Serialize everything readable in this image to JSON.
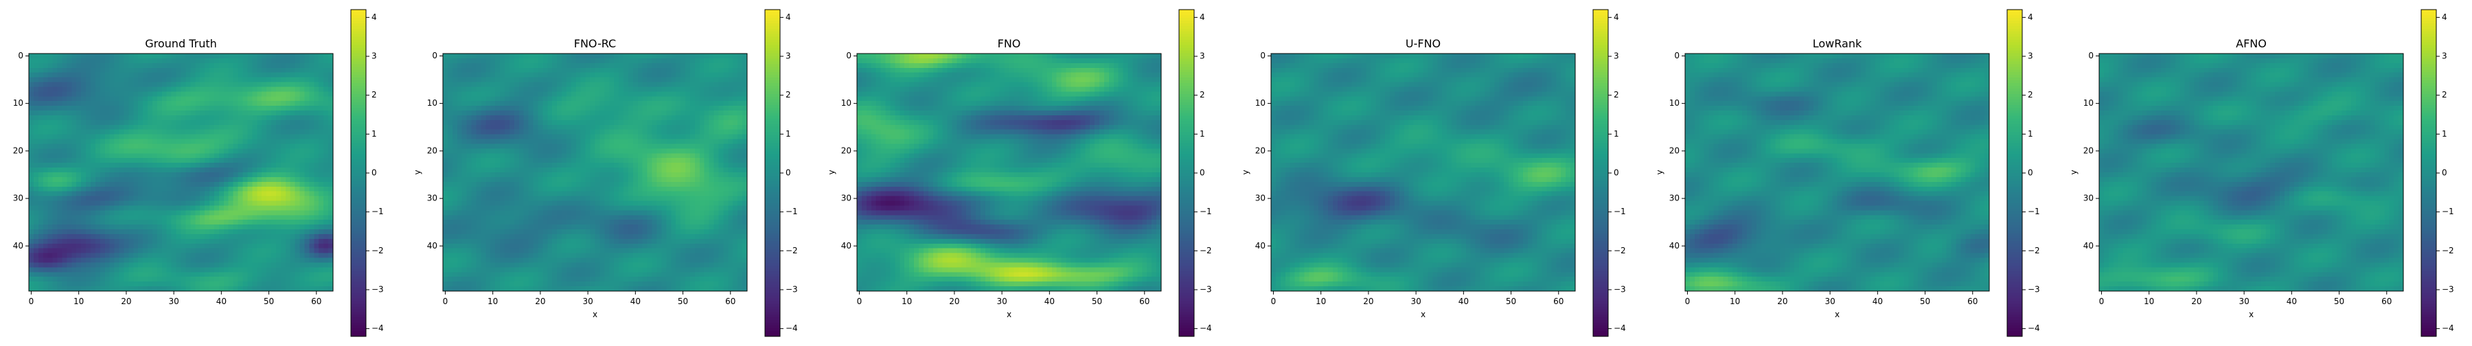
{
  "figure": {
    "colormap": "viridis",
    "colors": [
      "#440154",
      "#482878",
      "#3e4989",
      "#31688e",
      "#26828e",
      "#1f9e89",
      "#35b779",
      "#6ece58",
      "#b5de2b",
      "#fde725"
    ]
  },
  "chart_data": [
    {
      "type": "heatmap",
      "title": "Ground Truth",
      "xlabel": "",
      "ylabel": "",
      "x_ticks": [
        0,
        10,
        20,
        30,
        40,
        50,
        60
      ],
      "y_ticks": [
        0,
        10,
        20,
        30,
        40
      ],
      "grid_shape": [
        50,
        64
      ],
      "value_range": [
        -4.2,
        4.2
      ],
      "colorbar_ticks": [
        4,
        3,
        2,
        1,
        0,
        -1,
        -2,
        -3,
        -4
      ],
      "colorbar_labels": [
        "4",
        "3",
        "2",
        "1",
        "0",
        "−1",
        "−2",
        "−3",
        "−4"
      ],
      "features": [
        {
          "x": 52,
          "y": 29,
          "sx": 7,
          "sy": 3,
          "v": 3.3
        },
        {
          "x": 42,
          "y": 34,
          "sx": 9,
          "sy": 2,
          "v": 2.0
        },
        {
          "x": 10,
          "y": 40,
          "sx": 6,
          "sy": 2.5,
          "v": -3.4
        },
        {
          "x": 3,
          "y": 43,
          "sx": 4,
          "sy": 2,
          "v": -2.4
        },
        {
          "x": 62,
          "y": 40,
          "sx": 3,
          "sy": 2,
          "v": -2.6
        },
        {
          "x": 46,
          "y": 9,
          "sx": 14,
          "sy": 2.5,
          "v": 1.9
        },
        {
          "x": 30,
          "y": 19,
          "sx": 9,
          "sy": 3,
          "v": 2.0
        },
        {
          "x": 8,
          "y": 7,
          "sx": 9,
          "sy": 3,
          "v": -1.6
        },
        {
          "x": 36,
          "y": 25,
          "sx": 7,
          "sy": 2,
          "v": -1.7
        },
        {
          "x": 14,
          "y": 30,
          "sx": 9,
          "sy": 2,
          "v": -1.6
        },
        {
          "x": 5,
          "y": 26,
          "sx": 4,
          "sy": 2,
          "v": 1.3
        },
        {
          "x": 40,
          "y": 47,
          "sx": 14,
          "sy": 2,
          "v": 0.8
        }
      ]
    },
    {
      "type": "heatmap",
      "title": "FNO-RC",
      "xlabel": "x",
      "ylabel": "y",
      "x_ticks": [
        0,
        10,
        20,
        30,
        40,
        50,
        60
      ],
      "y_ticks": [
        0,
        10,
        20,
        30,
        40
      ],
      "grid_shape": [
        50,
        64
      ],
      "value_range": [
        -4.2,
        4.2
      ],
      "colorbar_ticks": [
        4,
        3,
        2,
        1,
        0,
        -1,
        -2,
        -3,
        -4
      ],
      "colorbar_labels": [
        "4",
        "3",
        "2",
        "1",
        "0",
        "−1",
        "−2",
        "−3",
        "−4"
      ],
      "features": [
        {
          "x": 13,
          "y": 14,
          "sx": 7,
          "sy": 3,
          "v": -1.9
        },
        {
          "x": 45,
          "y": 22,
          "sx": 9,
          "sy": 5,
          "v": 1.6
        },
        {
          "x": 52,
          "y": 29,
          "sx": 6,
          "sy": 4,
          "v": 1.6
        },
        {
          "x": 30,
          "y": 11,
          "sx": 10,
          "sy": 3,
          "v": 1.1
        },
        {
          "x": 38,
          "y": 35,
          "sx": 6,
          "sy": 3,
          "v": -1.2
        },
        {
          "x": 14,
          "y": 36,
          "sx": 8,
          "sy": 4,
          "v": -0.9
        },
        {
          "x": 60,
          "y": 12,
          "sx": 5,
          "sy": 4,
          "v": 1.0
        }
      ]
    },
    {
      "type": "heatmap",
      "title": "FNO",
      "xlabel": "x",
      "ylabel": "y",
      "x_ticks": [
        0,
        10,
        20,
        30,
        40,
        50,
        60
      ],
      "y_ticks": [
        0,
        10,
        20,
        30,
        40
      ],
      "grid_shape": [
        50,
        64
      ],
      "value_range": [
        -4.2,
        4.2
      ],
      "colorbar_ticks": [
        4,
        3,
        2,
        1,
        0,
        -1,
        -2,
        -3,
        -4
      ],
      "colorbar_labels": [
        "4",
        "3",
        "2",
        "1",
        "0",
        "−1",
        "−2",
        "−3",
        "−4"
      ],
      "features": [
        {
          "x": 10,
          "y": 31,
          "sx": 10,
          "sy": 3,
          "v": -3.6
        },
        {
          "x": 55,
          "y": 32,
          "sx": 8,
          "sy": 3,
          "v": -3.0
        },
        {
          "x": 40,
          "y": 14,
          "sx": 9,
          "sy": 2,
          "v": -3.0
        },
        {
          "x": 28,
          "y": 27,
          "sx": 7,
          "sy": 2,
          "v": 2.4
        },
        {
          "x": 20,
          "y": 43,
          "sx": 10,
          "sy": 3,
          "v": 2.5
        },
        {
          "x": 42,
          "y": 46,
          "sx": 12,
          "sy": 2,
          "v": 3.0
        },
        {
          "x": 14,
          "y": 0,
          "sx": 10,
          "sy": 2,
          "v": 2.8
        },
        {
          "x": 44,
          "y": 5,
          "sx": 8,
          "sy": 3,
          "v": 2.0
        },
        {
          "x": 4,
          "y": 16,
          "sx": 6,
          "sy": 4,
          "v": 1.9
        },
        {
          "x": 55,
          "y": 22,
          "sx": 6,
          "sy": 3,
          "v": 1.6
        },
        {
          "x": 26,
          "y": 37,
          "sx": 7,
          "sy": 2,
          "v": -2.4
        }
      ]
    },
    {
      "type": "heatmap",
      "title": "U-FNO",
      "xlabel": "x",
      "ylabel": "y",
      "x_ticks": [
        0,
        10,
        20,
        30,
        40,
        50,
        60
      ],
      "y_ticks": [
        0,
        10,
        20,
        30,
        40
      ],
      "grid_shape": [
        50,
        64
      ],
      "value_range": [
        -4.2,
        4.2
      ],
      "colorbar_ticks": [
        4,
        3,
        2,
        1,
        0,
        -1,
        -2,
        -3,
        -4
      ],
      "colorbar_labels": [
        "4",
        "3",
        "2",
        "1",
        "0",
        "−1",
        "−2",
        "−3",
        "−4"
      ],
      "features": [
        {
          "x": 16,
          "y": 31,
          "sx": 9,
          "sy": 3,
          "v": -2.3
        },
        {
          "x": 55,
          "y": 25,
          "sx": 8,
          "sy": 3,
          "v": 1.6
        },
        {
          "x": 10,
          "y": 47,
          "sx": 8,
          "sy": 2,
          "v": 1.7
        },
        {
          "x": 34,
          "y": 20,
          "sx": 8,
          "sy": 3,
          "v": 0.8
        },
        {
          "x": 44,
          "y": 37,
          "sx": 8,
          "sy": 3,
          "v": -0.9
        },
        {
          "x": 50,
          "y": 8,
          "sx": 10,
          "sy": 3,
          "v": -0.5
        }
      ]
    },
    {
      "type": "heatmap",
      "title": "LowRank",
      "xlabel": "x",
      "ylabel": "y",
      "x_ticks": [
        0,
        10,
        20,
        30,
        40,
        50,
        60
      ],
      "y_ticks": [
        0,
        10,
        20,
        30,
        40
      ],
      "grid_shape": [
        50,
        64
      ],
      "value_range": [
        -4.2,
        4.2
      ],
      "colorbar_ticks": [
        4,
        3,
        2,
        1,
        0,
        -1,
        -2,
        -3,
        -4
      ],
      "colorbar_labels": [
        "4",
        "3",
        "2",
        "1",
        "0",
        "−1",
        "−2",
        "−3",
        "−4"
      ],
      "features": [
        {
          "x": 8,
          "y": 38,
          "sx": 7,
          "sy": 3,
          "v": -2.0
        },
        {
          "x": 52,
          "y": 24,
          "sx": 8,
          "sy": 2,
          "v": 1.7
        },
        {
          "x": 8,
          "y": 48,
          "sx": 8,
          "sy": 2,
          "v": 1.9
        },
        {
          "x": 30,
          "y": 19,
          "sx": 9,
          "sy": 2,
          "v": 1.0
        },
        {
          "x": 42,
          "y": 31,
          "sx": 8,
          "sy": 2,
          "v": -1.2
        },
        {
          "x": 20,
          "y": 10,
          "sx": 9,
          "sy": 2,
          "v": -0.8
        },
        {
          "x": 60,
          "y": 40,
          "sx": 4,
          "sy": 2,
          "v": -1.1
        }
      ]
    },
    {
      "type": "heatmap",
      "title": "AFNO",
      "xlabel": "x",
      "ylabel": "y",
      "x_ticks": [
        0,
        10,
        20,
        30,
        40,
        50,
        60
      ],
      "y_ticks": [
        0,
        10,
        20,
        30,
        40
      ],
      "grid_shape": [
        50,
        64
      ],
      "value_range": [
        -4.2,
        4.2
      ],
      "colorbar_ticks": [
        4,
        3,
        2,
        1,
        0,
        -1,
        -2,
        -3,
        -4
      ],
      "colorbar_labels": [
        "4",
        "3",
        "2",
        "1",
        "0",
        "−1",
        "−2",
        "−3",
        "−4"
      ],
      "features": [
        {
          "x": 10,
          "y": 47,
          "sx": 8,
          "sy": 2,
          "v": 1.7
        },
        {
          "x": 32,
          "y": 28,
          "sx": 9,
          "sy": 3,
          "v": -1.4
        },
        {
          "x": 50,
          "y": 30,
          "sx": 7,
          "sy": 2,
          "v": 1.0
        },
        {
          "x": 10,
          "y": 16,
          "sx": 8,
          "sy": 2,
          "v": -1.0
        },
        {
          "x": 44,
          "y": 12,
          "sx": 10,
          "sy": 2,
          "v": 0.7
        },
        {
          "x": 24,
          "y": 37,
          "sx": 8,
          "sy": 2,
          "v": 0.8
        }
      ]
    }
  ]
}
